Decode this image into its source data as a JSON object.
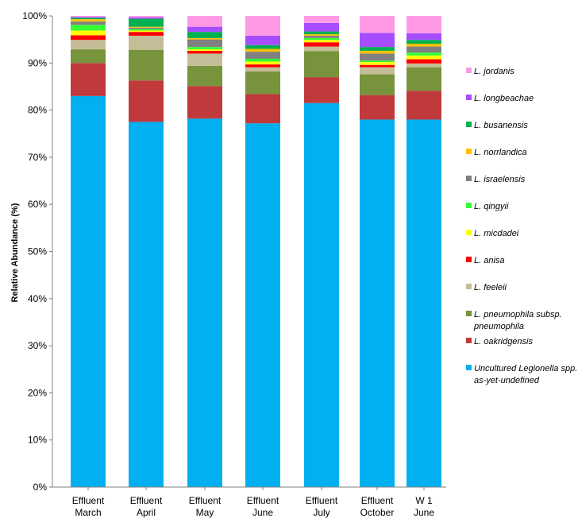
{
  "chart_data": {
    "type": "bar",
    "stacked": true,
    "percent_stacked": true,
    "title": "",
    "xlabel": "",
    "ylabel": "Relative Abundance (%)",
    "ylim": [
      0,
      100
    ],
    "y_ticks": [
      "0%",
      "10%",
      "20%",
      "30%",
      "40%",
      "50%",
      "60%",
      "70%",
      "80%",
      "90%",
      "100%"
    ],
    "grid": false,
    "legend_position": "right",
    "categories": [
      [
        "Effluent",
        "March"
      ],
      [
        "Effluent",
        "April"
      ],
      [
        "Effluent",
        "May"
      ],
      [
        "Effluent",
        "June"
      ],
      [
        "Effluent",
        "July"
      ],
      [
        "Effluent",
        "October"
      ],
      [
        "W 1",
        "June"
      ]
    ],
    "series": [
      {
        "name": [
          "Uncultured Legionella spp.",
          "as-yet-undefined"
        ],
        "color": "#00B0F0",
        "values": [
          83.0,
          77.5,
          78.2,
          77.2,
          81.5,
          78.0,
          78.0
        ]
      },
      {
        "name": [
          "L. oakridgensis"
        ],
        "color": "#C0393B",
        "values": [
          7.0,
          8.8,
          6.9,
          6.2,
          5.5,
          5.2,
          6.1
        ]
      },
      {
        "name": [
          "L. pneumophila subsp.",
          "pneumophila"
        ],
        "color": "#77933C",
        "values": [
          2.9,
          6.5,
          4.3,
          4.8,
          5.5,
          4.4,
          5.0
        ]
      },
      {
        "name": [
          "L. feeleii"
        ],
        "color": "#C4BD97",
        "values": [
          2.0,
          3.0,
          2.6,
          0.9,
          1.0,
          1.5,
          0.8
        ]
      },
      {
        "name": [
          "L. anisa"
        ],
        "color": "#FF0000",
        "values": [
          1.0,
          0.8,
          0.6,
          0.6,
          0.9,
          0.5,
          0.9
        ]
      },
      {
        "name": [
          "L. micdadei"
        ],
        "color": "#FFFF00",
        "values": [
          1.0,
          0.3,
          0.3,
          0.6,
          0.5,
          0.6,
          0.8
        ]
      },
      {
        "name": [
          "L. qingyii"
        ],
        "color": "#33FF33",
        "values": [
          1.2,
          0.3,
          0.5,
          0.6,
          0.4,
          0.3,
          0.6
        ]
      },
      {
        "name": [
          "L. israelensis"
        ],
        "color": "#808080",
        "values": [
          0.7,
          0.3,
          1.6,
          1.5,
          0.5,
          1.5,
          1.3
        ]
      },
      {
        "name": [
          "L. norrlandica"
        ],
        "color": "#FFC000",
        "values": [
          0.5,
          0.2,
          0.3,
          0.6,
          0.3,
          0.6,
          0.6
        ]
      },
      {
        "name": [
          "L. busanensis"
        ],
        "color": "#00B050",
        "values": [
          0.3,
          1.7,
          1.3,
          0.8,
          0.6,
          0.8,
          0.8
        ]
      },
      {
        "name": [
          "L. longbeachae"
        ],
        "color": "#A64DFF",
        "values": [
          0.2,
          0.3,
          1.1,
          2.0,
          1.8,
          3.0,
          1.4
        ]
      },
      {
        "name": [
          "L. jordanis"
        ],
        "color": "#FF99E6",
        "values": [
          0.2,
          0.3,
          2.3,
          4.2,
          1.5,
          3.6,
          3.7
        ]
      }
    ]
  }
}
